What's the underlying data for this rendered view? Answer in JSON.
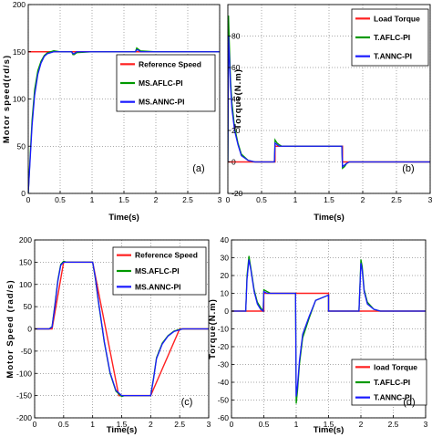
{
  "chart_data": [
    {
      "type": "line",
      "panel_label": "(a)",
      "xlabel": "Time(s)",
      "ylabel": "Motor speed(rd/s)",
      "xlim": [
        0,
        3
      ],
      "ylim": [
        0,
        200
      ],
      "xticks": [
        "0",
        "0.5",
        "1",
        "1.5",
        "2",
        "2.5",
        "3"
      ],
      "yticks": [
        "0",
        "50",
        "100",
        "150",
        "200"
      ],
      "grid": true,
      "legend_position": "right",
      "series": [
        {
          "name": "Reference Speed",
          "color": "#ff2020",
          "x": [
            0,
            0.06,
            3.0
          ],
          "y": [
            150,
            150,
            150
          ]
        },
        {
          "name": "MS.AFLC-PI",
          "color": "#009900",
          "x": [
            0,
            0.03,
            0.06,
            0.1,
            0.15,
            0.2,
            0.25,
            0.3,
            0.4,
            0.5,
            0.68,
            0.7,
            0.72,
            0.76,
            1.0,
            1.5,
            1.68,
            1.7,
            1.72,
            1.76,
            2.0,
            3.0
          ],
          "y": [
            0,
            40,
            78,
            110,
            130,
            140,
            146,
            149,
            151,
            150,
            150,
            147,
            147,
            149,
            150,
            150,
            150,
            154,
            153,
            151,
            150,
            150
          ]
        },
        {
          "name": "MS.ANNC-PI",
          "color": "#1a1aff",
          "x": [
            0,
            0.03,
            0.06,
            0.1,
            0.15,
            0.2,
            0.25,
            0.3,
            0.4,
            0.5,
            0.68,
            0.7,
            0.72,
            0.76,
            1.0,
            1.5,
            1.68,
            1.7,
            1.72,
            1.76,
            2.0,
            3.0
          ],
          "y": [
            0,
            36,
            72,
            104,
            126,
            138,
            145,
            148,
            150,
            150,
            150,
            148,
            148,
            150,
            150,
            150,
            150,
            152,
            152,
            150,
            150,
            150
          ]
        }
      ]
    },
    {
      "type": "line",
      "panel_label": "(b)",
      "xlabel": "Time(s)",
      "ylabel": "Torque(N.m)",
      "xlim": [
        0,
        3
      ],
      "ylim": [
        -20,
        100
      ],
      "xticks": [
        "0",
        "0.5",
        "1",
        "1.5",
        "2",
        "2.5",
        "3"
      ],
      "yticks": [
        "-20",
        "0",
        "20",
        "40",
        "60",
        "80"
      ],
      "grid": true,
      "legend_position": "top-right",
      "series": [
        {
          "name": "Load Torque",
          "color": "#ff2020",
          "x": [
            0,
            0.7,
            0.7,
            1.7,
            1.7,
            3.0
          ],
          "y": [
            0,
            0,
            10,
            10,
            0,
            0
          ]
        },
        {
          "name": "T.AFLC-PI",
          "color": "#009900",
          "x": [
            0,
            0.01,
            0.02,
            0.04,
            0.06,
            0.1,
            0.15,
            0.2,
            0.3,
            0.4,
            0.5,
            0.69,
            0.7,
            0.73,
            0.76,
            0.8,
            1.0,
            1.69,
            1.7,
            1.73,
            1.76,
            1.8,
            2.0,
            3.0
          ],
          "y": [
            0,
            93,
            78,
            52,
            38,
            22,
            12,
            5,
            1,
            0,
            0,
            0,
            14,
            12,
            11,
            10,
            10,
            10,
            -4,
            -3,
            -1,
            0,
            0,
            0
          ]
        },
        {
          "name": "T.ANNC-PI",
          "color": "#1a1aff",
          "x": [
            0,
            0.01,
            0.02,
            0.04,
            0.06,
            0.1,
            0.15,
            0.2,
            0.3,
            0.4,
            0.5,
            0.69,
            0.7,
            0.73,
            0.76,
            0.8,
            1.0,
            1.69,
            1.7,
            1.73,
            1.76,
            1.8,
            2.0,
            3.0
          ],
          "y": [
            0,
            80,
            70,
            48,
            34,
            20,
            11,
            4,
            1,
            0,
            0,
            0,
            12,
            11,
            10,
            10,
            10,
            10,
            -3,
            -2,
            -1,
            0,
            0,
            0
          ]
        }
      ]
    },
    {
      "type": "line",
      "panel_label": "(c)",
      "xlabel": "Time(s)",
      "ylabel": "Motor Speed (rad/s)",
      "xlim": [
        0,
        3
      ],
      "ylim": [
        -200,
        200
      ],
      "xticks": [
        "0",
        "0.5",
        "1",
        "1.5",
        "2",
        "2.5",
        "3"
      ],
      "yticks": [
        "-200",
        "-150",
        "-100",
        "-50",
        "0",
        "50",
        "100",
        "150",
        "200"
      ],
      "grid": true,
      "legend_position": "top-right",
      "series": [
        {
          "name": "Reference Speed",
          "color": "#ff2020",
          "x": [
            0,
            0.3,
            0.5,
            1.0,
            1.45,
            2.0,
            2.5,
            3.0
          ],
          "y": [
            0,
            0,
            150,
            150,
            -150,
            -150,
            0,
            0
          ]
        },
        {
          "name": "MS.AFLC-PI",
          "color": "#009900",
          "x": [
            0,
            0.25,
            0.3,
            0.35,
            0.4,
            0.45,
            0.5,
            0.55,
            0.6,
            0.8,
            1.0,
            1.05,
            1.1,
            1.2,
            1.3,
            1.4,
            1.5,
            1.55,
            1.6,
            1.8,
            2.0,
            2.05,
            2.1,
            2.2,
            2.3,
            2.4,
            2.5,
            2.55,
            2.6,
            3.0
          ],
          "y": [
            0,
            0,
            5,
            55,
            110,
            145,
            152,
            150,
            150,
            150,
            150,
            110,
            60,
            -30,
            -100,
            -140,
            -152,
            -150,
            -150,
            -150,
            -150,
            -110,
            -65,
            -32,
            -15,
            -5,
            -1,
            0,
            0,
            0
          ]
        },
        {
          "name": "MS.ANNC-PI",
          "color": "#1a1aff",
          "x": [
            0,
            0.25,
            0.3,
            0.35,
            0.4,
            0.45,
            0.5,
            0.55,
            0.6,
            0.8,
            1.0,
            1.05,
            1.1,
            1.2,
            1.3,
            1.4,
            1.5,
            1.55,
            1.6,
            1.8,
            2.0,
            2.05,
            2.1,
            2.2,
            2.3,
            2.4,
            2.5,
            2.55,
            2.6,
            3.0
          ],
          "y": [
            0,
            0,
            4,
            52,
            107,
            143,
            150,
            150,
            150,
            150,
            150,
            112,
            62,
            -28,
            -98,
            -138,
            -150,
            -150,
            -150,
            -150,
            -150,
            -112,
            -67,
            -34,
            -16,
            -6,
            -2,
            0,
            0,
            0
          ]
        }
      ]
    },
    {
      "type": "line",
      "panel_label": "(d)",
      "xlabel": "Time(s)",
      "ylabel": "Torque(N.m)",
      "xlim": [
        0,
        3
      ],
      "ylim": [
        -60,
        40
      ],
      "xticks": [
        "0",
        "0.5",
        "1",
        "1.5",
        "2",
        "2.5",
        "3"
      ],
      "yticks": [
        "-60",
        "-50",
        "-40",
        "-30",
        "-20",
        "-10",
        "0",
        "10",
        "20",
        "30",
        "40"
      ],
      "grid": true,
      "legend_position": "bottom-right",
      "series": [
        {
          "name": "load Torque",
          "color": "#ff2020",
          "x": [
            0,
            0.5,
            0.5,
            1.5,
            1.5,
            3.0
          ],
          "y": [
            0,
            0,
            10,
            10,
            0,
            0
          ]
        },
        {
          "name": "T.AFLC-PI",
          "color": "#009900",
          "x": [
            0,
            0.22,
            0.24,
            0.27,
            0.3,
            0.35,
            0.4,
            0.45,
            0.49,
            0.5,
            0.55,
            0.6,
            0.8,
            0.99,
            1.0,
            1.02,
            1.05,
            1.1,
            1.2,
            1.3,
            1.5,
            1.5,
            1.6,
            1.97,
            2.0,
            2.02,
            2.05,
            2.1,
            2.2,
            2.3,
            2.5,
            3.0
          ],
          "y": [
            0,
            0,
            20,
            31,
            24,
            12,
            5,
            2,
            0,
            12,
            11,
            10,
            10,
            10,
            -52,
            -45,
            -30,
            -15,
            -4,
            6,
            9,
            0,
            0,
            0,
            29,
            25,
            12,
            5,
            1,
            0,
            0,
            0
          ]
        },
        {
          "name": "T.ANNC-PI",
          "color": "#1a1aff",
          "x": [
            0,
            0.22,
            0.24,
            0.27,
            0.3,
            0.35,
            0.4,
            0.45,
            0.49,
            0.5,
            0.55,
            0.6,
            0.8,
            0.99,
            1.0,
            1.02,
            1.05,
            1.1,
            1.2,
            1.3,
            1.5,
            1.5,
            1.6,
            1.97,
            2.0,
            2.02,
            2.05,
            2.1,
            2.2,
            2.3,
            2.5,
            3.0
          ],
          "y": [
            0,
            0,
            18,
            29,
            23,
            11,
            4,
            1,
            0,
            11,
            10,
            10,
            10,
            10,
            -48,
            -42,
            -28,
            -13,
            -3,
            6,
            9,
            0,
            0,
            0,
            27,
            23,
            11,
            4,
            1,
            0,
            0,
            0
          ]
        }
      ]
    }
  ]
}
